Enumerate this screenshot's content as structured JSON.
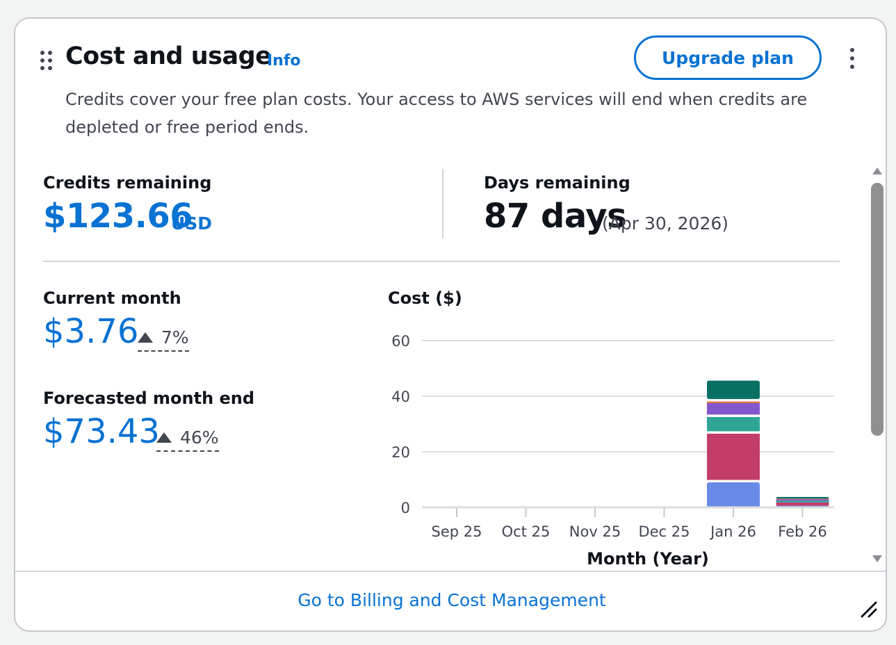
{
  "card": {
    "title": "Cost and usage",
    "info_label": "Info",
    "upgrade_label": "Upgrade plan",
    "description": "Credits cover your free plan costs. Your access to AWS services will end when credits are depleted or free period ends."
  },
  "credits": {
    "label": "Credits remaining",
    "value": "$123.66",
    "unit": "USD"
  },
  "days": {
    "label": "Days remaining",
    "value": "87 days",
    "date": "(Apr 30, 2026)"
  },
  "current_month": {
    "label": "Current month",
    "value": "$3.76",
    "change": "7%",
    "direction": "up"
  },
  "forecast": {
    "label": "Forecasted month end",
    "value": "$73.43",
    "change": "46%",
    "direction": "up"
  },
  "footer": {
    "link_label": "Go to Billing and Cost Management"
  },
  "icons": {
    "drag": "drag-handle-icon",
    "more": "more-vertical-icon",
    "resize": "resize-handle-icon",
    "change": "triangle-up-icon"
  },
  "colors": {
    "accent": "#0972d3",
    "text": "#0f141a",
    "muted": "#424650"
  },
  "chart_data": {
    "type": "bar",
    "stacked": true,
    "title": "Cost ($)",
    "xlabel": "Month (Year)",
    "ylabel": "Cost ($)",
    "ylim": [
      0,
      60
    ],
    "yticks": [
      0,
      20,
      40,
      60
    ],
    "categories": [
      "Sep 25",
      "Oct 25",
      "Nov 25",
      "Dec 25",
      "Jan 26",
      "Feb 26"
    ],
    "grid": true,
    "series": [
      {
        "color": "#688ae8",
        "values": [
          0,
          0,
          0,
          0,
          9,
          0.6
        ]
      },
      {
        "color": "#c33d69",
        "values": [
          0,
          0,
          0,
          0,
          17.5,
          1.2
        ]
      },
      {
        "color": "#2ea597",
        "values": [
          0,
          0,
          0,
          0,
          6,
          0.6
        ]
      },
      {
        "color": "#8456ce",
        "values": [
          0,
          0,
          0,
          0,
          5,
          0.6
        ]
      },
      {
        "color": "#e07941",
        "values": [
          0,
          0,
          0,
          0,
          0.6,
          0.15
        ]
      },
      {
        "color": "#096f64",
        "values": [
          0,
          0,
          0,
          0,
          7.5,
          0.6
        ]
      }
    ]
  }
}
